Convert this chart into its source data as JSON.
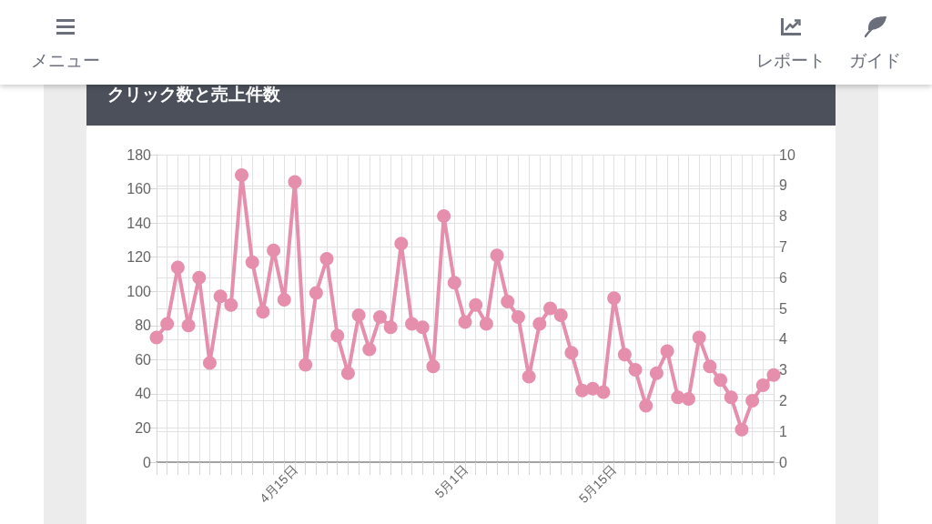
{
  "chart_data": {
    "type": "line",
    "title": "クリック数と売上件数",
    "annotations": [
      "メニュー",
      "レポート",
      "ガイド"
    ],
    "categories": [
      null,
      null,
      null,
      null,
      null,
      null,
      null,
      null,
      null,
      null,
      null,
      null,
      null,
      "4月15日",
      null,
      null,
      null,
      null,
      null,
      null,
      null,
      null,
      null,
      null,
      null,
      null,
      null,
      null,
      null,
      "5月1日",
      null,
      null,
      null,
      null,
      null,
      null,
      null,
      null,
      null,
      null,
      null,
      null,
      null,
      "5月15日",
      null,
      null,
      null,
      null,
      null,
      null,
      null,
      null,
      null,
      null,
      null,
      null,
      null,
      null,
      null
    ],
    "series": [
      {
        "color": "#e68fac",
        "values": [
          73,
          81,
          114,
          80,
          108,
          58,
          97,
          92,
          168,
          117,
          88,
          124,
          95,
          164,
          57,
          99,
          119,
          74,
          52,
          86,
          66,
          85,
          79,
          128,
          81,
          79,
          56,
          144,
          105,
          82,
          92,
          81,
          121,
          94,
          85,
          50,
          81,
          90,
          86,
          64,
          42,
          43,
          41,
          96,
          63,
          54,
          33,
          52,
          65,
          38,
          37,
          73,
          56,
          48,
          38,
          19,
          36,
          45,
          51
        ]
      }
    ],
    "ylim": [
      0,
      180
    ],
    "yticks": [
      0,
      20,
      40,
      60,
      80,
      100,
      120,
      140,
      160,
      180
    ],
    "y2lim": [
      0,
      10
    ],
    "y2ticks": [
      0,
      1,
      2,
      3,
      4,
      5,
      6,
      7,
      8,
      9,
      10
    ],
    "grid": true,
    "marker": "circle",
    "line_style": "solid"
  }
}
